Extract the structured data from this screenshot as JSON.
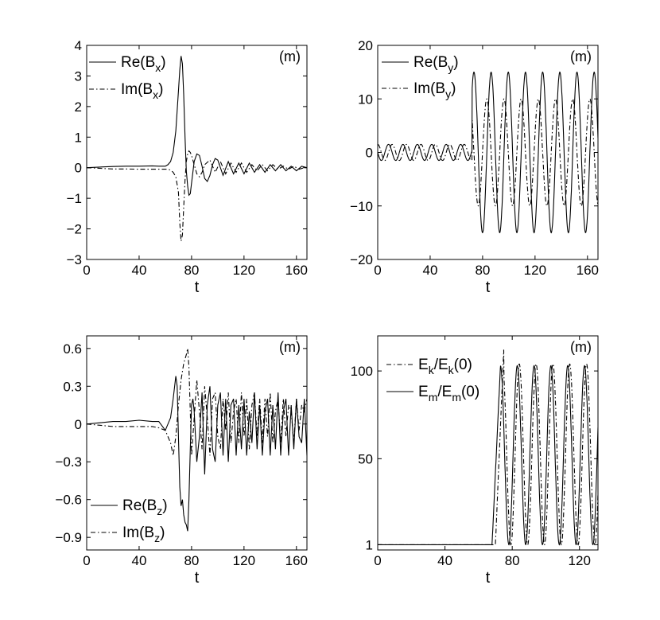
{
  "chart_data": [
    {
      "type": "line",
      "panel_label": "(m)",
      "xlabel": "t",
      "xlim": [
        0,
        168
      ],
      "ylim": [
        -3,
        4
      ],
      "xticks": [
        0,
        40,
        80,
        120,
        160
      ],
      "yticks": [
        -3,
        -2,
        -1,
        0,
        1,
        2,
        3,
        4
      ],
      "legend": "top-right",
      "series": [
        {
          "name": "Re(B_x)",
          "style": "solid",
          "x": [
            0,
            10,
            20,
            30,
            40,
            50,
            55,
            60,
            62,
            64,
            66,
            68,
            70,
            71,
            72,
            73,
            74,
            75,
            76,
            77,
            78,
            79,
            80,
            82,
            84,
            86,
            88,
            90,
            92,
            94,
            96,
            98,
            100,
            104,
            108,
            112,
            116,
            120,
            124,
            128,
            132,
            136,
            140,
            144,
            148,
            152,
            156,
            160,
            164,
            168
          ],
          "y": [
            0,
            0.02,
            0.04,
            0.05,
            0.05,
            0.06,
            0.05,
            0.05,
            0.1,
            0.2,
            0.5,
            1.2,
            2.5,
            3.2,
            3.65,
            3.4,
            2.4,
            1.0,
            -0.1,
            -0.6,
            -0.9,
            -0.85,
            -0.5,
            0.2,
            0.45,
            0.4,
            0.05,
            -0.35,
            -0.45,
            -0.25,
            0.1,
            0.3,
            0.25,
            -0.25,
            0.2,
            -0.2,
            0.15,
            -0.2,
            0.15,
            -0.15,
            0.1,
            -0.15,
            0.1,
            -0.1,
            0.1,
            -0.1,
            0.05,
            -0.1,
            0.05,
            0
          ]
        },
        {
          "name": "Im(B_x)",
          "style": "dashdot",
          "x": [
            0,
            10,
            20,
            30,
            40,
            50,
            55,
            60,
            62,
            64,
            66,
            68,
            70,
            71,
            72,
            73,
            74,
            75,
            76,
            77,
            78,
            79,
            80,
            82,
            84,
            86,
            88,
            90,
            94,
            98,
            102,
            106,
            110,
            114,
            118,
            122,
            126,
            130,
            134,
            138,
            142,
            146,
            150,
            154,
            158,
            162,
            166,
            168
          ],
          "y": [
            0,
            -0.02,
            -0.04,
            -0.04,
            -0.05,
            -0.05,
            -0.05,
            -0.05,
            -0.05,
            -0.08,
            -0.15,
            -0.3,
            -0.8,
            -1.8,
            -2.4,
            -2.2,
            -1.3,
            -0.4,
            0.2,
            0.45,
            0.55,
            0.5,
            0.4,
            0.1,
            -0.2,
            -0.3,
            -0.15,
            0.1,
            0.25,
            -0.15,
            0.2,
            -0.2,
            0.15,
            -0.15,
            0.15,
            -0.15,
            0.1,
            -0.1,
            0.1,
            -0.1,
            0.1,
            -0.05,
            0.05,
            -0.05,
            0.05,
            -0.05,
            0,
            0
          ]
        }
      ]
    },
    {
      "type": "line",
      "panel_label": "(m)",
      "xlabel": "t",
      "xlim": [
        0,
        168
      ],
      "ylim": [
        -20,
        20
      ],
      "xticks": [
        0,
        40,
        80,
        120,
        160
      ],
      "yticks": [
        -20,
        -10,
        0,
        10,
        20
      ],
      "legend": "top-right",
      "series": [
        {
          "name": "Re(B_y)",
          "style": "solid",
          "function": "y_re"
        },
        {
          "name": "Im(B_y)",
          "style": "dashdot",
          "function": "y_im"
        }
      ]
    },
    {
      "type": "line",
      "panel_label": "(m)",
      "xlabel": "t",
      "xlim": [
        0,
        168
      ],
      "ylim": [
        -1.0,
        0.7
      ],
      "xticks": [
        0,
        40,
        80,
        120,
        160
      ],
      "yticks": [
        -0.9,
        -0.6,
        -0.3,
        0,
        0.3,
        0.6
      ],
      "ytick_labels": [
        "−0.9",
        "−0.6",
        "−0.3",
        "0",
        "0.3",
        "0.6"
      ],
      "legend": "bottom-left",
      "series": [
        {
          "name": "Re(B_z)",
          "style": "solid",
          "x": [
            0,
            10,
            20,
            30,
            40,
            50,
            55,
            60,
            64,
            66,
            68,
            69,
            70,
            71,
            72,
            73,
            74,
            75,
            76,
            77,
            78,
            79,
            80,
            81,
            82,
            84,
            86,
            88,
            90,
            92,
            94,
            96,
            98,
            100,
            102,
            104,
            106,
            108,
            110,
            112,
            114,
            116,
            118,
            120,
            122,
            124,
            126,
            128,
            130,
            132,
            134,
            136,
            138,
            140,
            142,
            144,
            146,
            148,
            150,
            152,
            154,
            156,
            158,
            160,
            162,
            164,
            166,
            168
          ],
          "y": [
            0,
            0.01,
            0.02,
            0.02,
            0.03,
            0.02,
            0.02,
            -0.05,
            0.05,
            0.2,
            0.38,
            0.3,
            -0.1,
            -0.5,
            -0.65,
            -0.6,
            -0.72,
            -0.78,
            -0.8,
            -0.85,
            -0.6,
            -0.2,
            0.15,
            0.2,
            0.1,
            -0.3,
            -0.1,
            0.25,
            -0.4,
            0.15,
            0.3,
            -0.2,
            -0.3,
            0.15,
            0.25,
            -0.25,
            0.2,
            -0.3,
            0.15,
            0.2,
            -0.25,
            0.15,
            -0.2,
            0.2,
            -0.25,
            0.1,
            -0.15,
            0.25,
            -0.2,
            0.15,
            -0.25,
            0.1,
            0.2,
            -0.25,
            0.15,
            -0.2,
            0.25,
            -0.25,
            0.1,
            0.2,
            -0.25,
            0.15,
            -0.2,
            0.2,
            -0.1,
            -0.15,
            0.2,
            -0.25
          ]
        },
        {
          "name": "Im(B_z)",
          "style": "dashdot",
          "x": [
            0,
            10,
            20,
            30,
            40,
            50,
            55,
            60,
            64,
            66,
            68,
            70,
            72,
            74,
            76,
            77,
            78,
            79,
            80,
            82,
            84,
            86,
            88,
            90,
            92,
            94,
            96,
            98,
            100,
            102,
            104,
            106,
            108,
            110,
            112,
            114,
            116,
            118,
            120,
            122,
            124,
            126,
            128,
            130,
            132,
            134,
            136,
            138,
            140,
            142,
            144,
            146,
            148,
            150,
            152,
            154,
            156,
            158,
            160,
            162,
            164,
            166,
            168
          ],
          "y": [
            0,
            -0.01,
            -0.02,
            -0.02,
            -0.02,
            -0.02,
            -0.03,
            -0.05,
            -0.15,
            -0.25,
            -0.1,
            0.15,
            0.35,
            0.48,
            0.55,
            0.6,
            0.45,
            0.1,
            -0.25,
            0.05,
            0.35,
            0.1,
            -0.2,
            0.3,
            0.05,
            -0.25,
            0.2,
            0.25,
            -0.1,
            -0.2,
            0.2,
            -0.05,
            0.25,
            -0.15,
            0.1,
            0.2,
            -0.15,
            0.25,
            -0.1,
            0.2,
            -0.2,
            0.15,
            0.25,
            -0.1,
            0.2,
            -0.15,
            0.2,
            -0.1,
            0.25,
            -0.15,
            0.1,
            0.2,
            -0.15,
            0.2,
            -0.1,
            0.15,
            0.1,
            -0.15,
            0.2,
            -0.05,
            0.15,
            0.1,
            0.2
          ]
        }
      ]
    },
    {
      "type": "line",
      "panel_label": "(m)",
      "xlabel": "t",
      "xlim": [
        0,
        131
      ],
      "ylim": [
        -2,
        120
      ],
      "xticks": [
        0,
        40,
        80,
        120
      ],
      "yticks": [
        1,
        50,
        100
      ],
      "legend": "top-left",
      "series": [
        {
          "name": "E_k/E_k(0)",
          "style": "dashdot",
          "function": "ek"
        },
        {
          "name": "E_m/E_m(0)",
          "style": "solid",
          "function": "em"
        }
      ]
    }
  ]
}
